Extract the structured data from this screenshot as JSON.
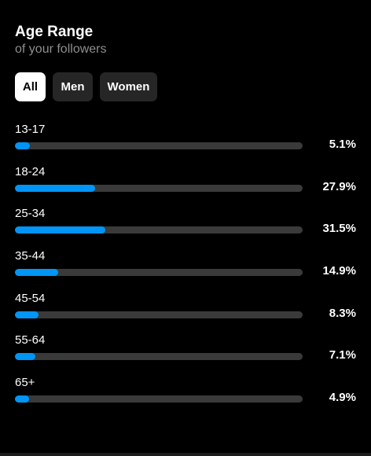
{
  "header": {
    "title": "Age Range",
    "subtitle": "of your followers"
  },
  "filters": [
    {
      "label": "All",
      "active": true
    },
    {
      "label": "Men",
      "active": false
    },
    {
      "label": "Women",
      "active": false
    }
  ],
  "age_ranges": [
    {
      "label": "13-17",
      "percent_text": "5.1%",
      "value": 5.1
    },
    {
      "label": "18-24",
      "percent_text": "27.9%",
      "value": 27.9
    },
    {
      "label": "25-34",
      "percent_text": "31.5%",
      "value": 31.5
    },
    {
      "label": "35-44",
      "percent_text": "14.9%",
      "value": 14.9
    },
    {
      "label": "45-54",
      "percent_text": "8.3%",
      "value": 8.3
    },
    {
      "label": "55-64",
      "percent_text": "7.1%",
      "value": 7.1
    },
    {
      "label": "65+",
      "percent_text": "4.9%",
      "value": 4.9
    }
  ],
  "colors": {
    "background": "#000000",
    "accent": "#0095f6",
    "track": "#3a3a3a",
    "chip": "#262626",
    "chip_active": "#ffffff"
  }
}
